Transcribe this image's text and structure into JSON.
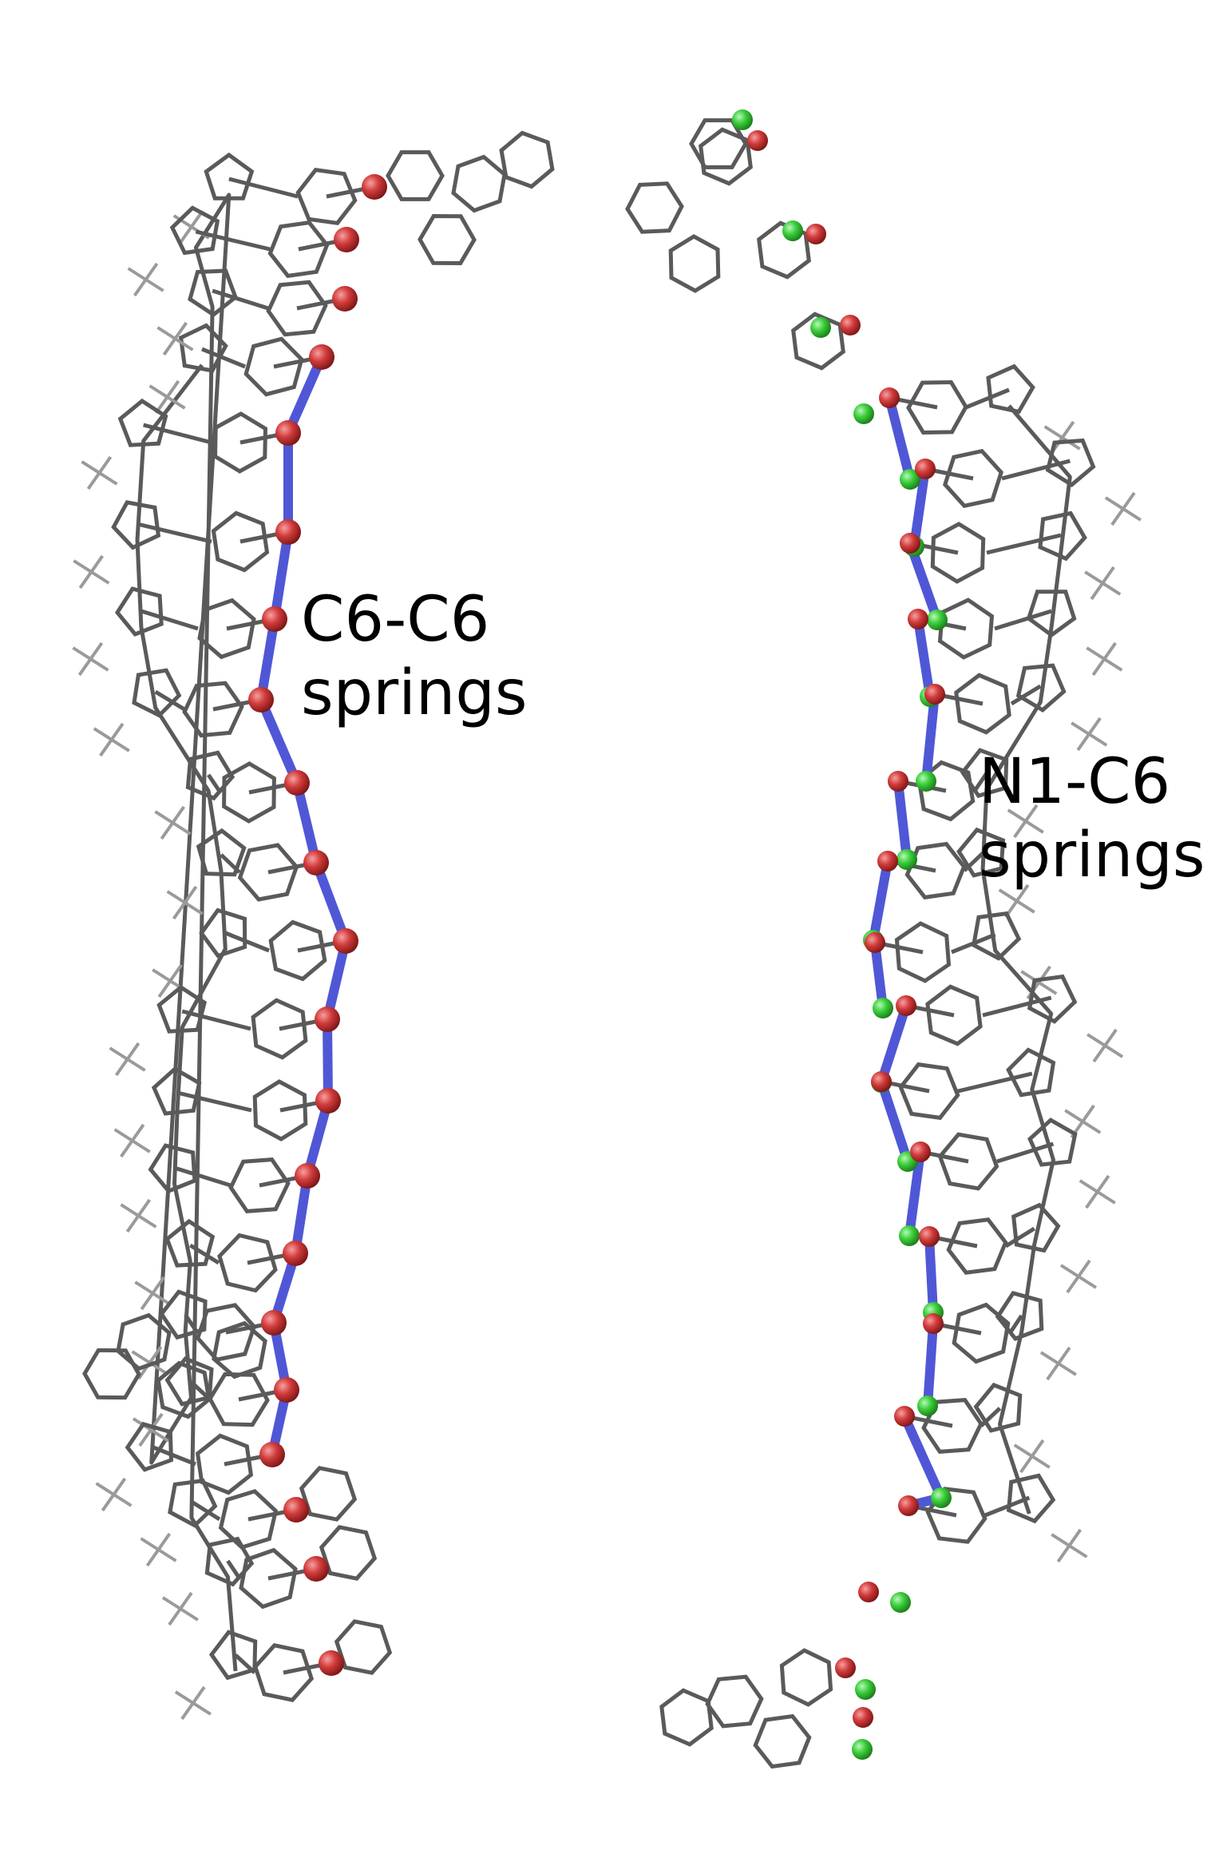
{
  "labels": {
    "left": {
      "line1": "C6-C6",
      "line2": "springs"
    },
    "right": {
      "line1": "N1-C6",
      "line2": "springs"
    }
  },
  "colors": {
    "backbone": "#5a5a5a",
    "backbone_light": "#9a9a9a",
    "spring": "#5057d6",
    "atom_c6": "#d23c3c",
    "atom_n1": "#3ccf3c",
    "background": "#ffffff"
  },
  "strands": {
    "left": {
      "atom_types": [
        "C6"
      ],
      "spring_type": "C6-C6"
    },
    "right": {
      "atom_types": [
        "N1",
        "C6"
      ],
      "spring_type": "N1-C6"
    }
  }
}
